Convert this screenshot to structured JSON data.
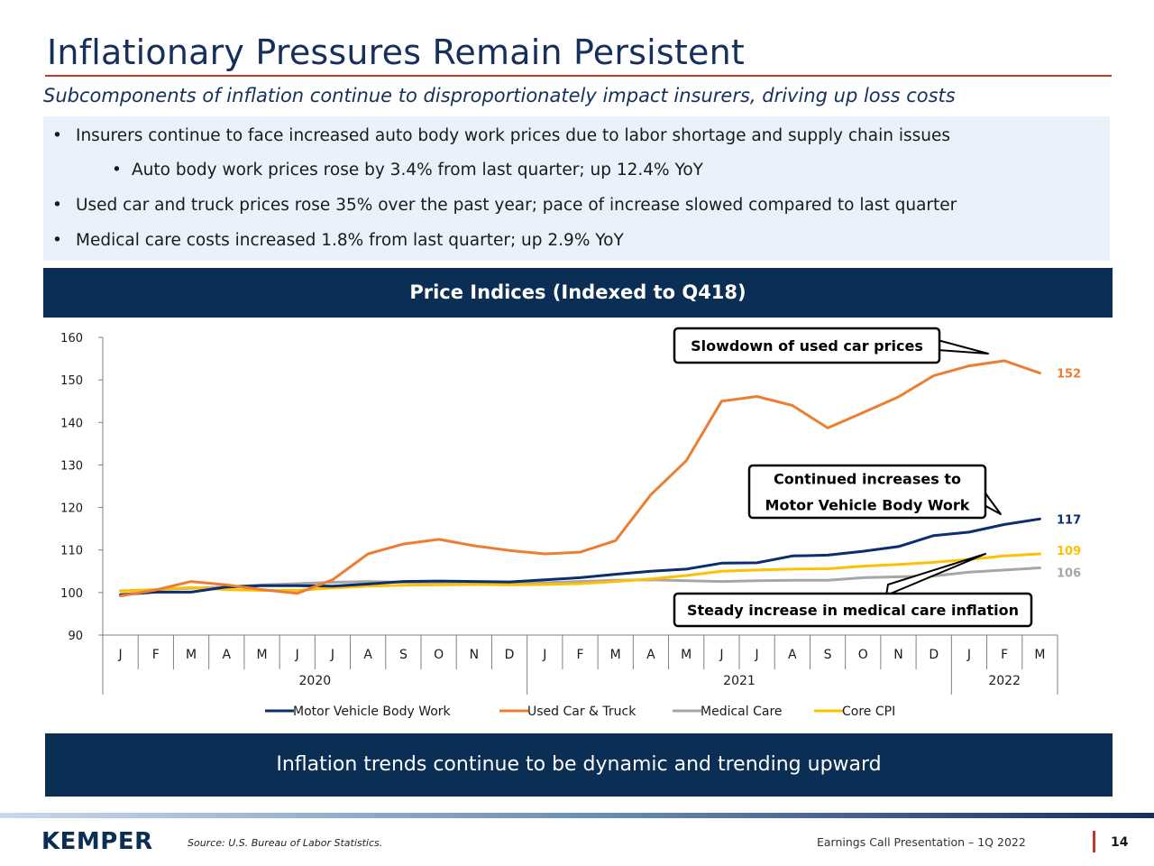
{
  "header": {
    "title": "Inflationary Pressures Remain Persistent",
    "subtitle": "Subcomponents of inflation continue to disproportionately impact insurers, driving up loss costs"
  },
  "bullets": [
    "Insurers continue to face increased auto body work prices due to labor shortage and supply chain issues",
    "Auto body work prices rose by 3.4% from last quarter; up 12.4% YoY",
    "Used car and truck prices rose 35% over the past year; pace of increase slowed compared to last quarter",
    "Medical care costs increased 1.8% from last quarter; up 2.9% YoY"
  ],
  "chart_data": {
    "type": "line",
    "title": "Price Indices (Indexed to Q418)",
    "categories": [
      "J",
      "F",
      "M",
      "A",
      "M",
      "J",
      "J",
      "A",
      "S",
      "O",
      "N",
      "D",
      "J",
      "F",
      "M",
      "A",
      "M",
      "J",
      "J",
      "A",
      "S",
      "O",
      "N",
      "D",
      "J",
      "F",
      "M"
    ],
    "year_groups": [
      {
        "label": "2020",
        "count": 12
      },
      {
        "label": "2021",
        "count": 12
      },
      {
        "label": "2022",
        "count": 3
      }
    ],
    "ylim": [
      90,
      160
    ],
    "yticks": [
      90,
      100,
      110,
      120,
      130,
      140,
      150,
      160
    ],
    "series": [
      {
        "name": "Motor Vehicle Body Work",
        "color": "#0b2e6e",
        "end_label": "117",
        "values": [
          99.5,
          100.1,
          100.1,
          101.3,
          101.6,
          101.6,
          101.5,
          102.0,
          102.6,
          102.7,
          102.6,
          102.5,
          103.0,
          103.5,
          104.3,
          105.0,
          105.5,
          106.9,
          107.0,
          108.6,
          108.8,
          109.7,
          110.8,
          113.4,
          114.2,
          116.0,
          117.3
        ]
      },
      {
        "name": "Used Car & Truck",
        "color": "#ed7d31",
        "end_label": "152",
        "values": [
          99.2,
          100.6,
          102.6,
          101.8,
          100.7,
          99.8,
          103.0,
          109.1,
          111.4,
          112.5,
          111.0,
          109.9,
          109.1,
          109.5,
          112.2,
          123.0,
          131.0,
          145.0,
          146.1,
          144.0,
          138.7,
          142.3,
          146.0,
          151.0,
          153.3,
          154.5,
          151.6
        ]
      },
      {
        "name": "Medical Care",
        "color": "#a6a6a6",
        "end_label": "106",
        "values": [
          100.4,
          100.7,
          101.0,
          101.3,
          101.8,
          102.1,
          102.4,
          102.6,
          102.4,
          102.2,
          102.1,
          102.1,
          102.3,
          102.6,
          102.9,
          103.0,
          102.8,
          102.6,
          102.8,
          102.9,
          102.9,
          103.5,
          103.7,
          103.9,
          104.8,
          105.3,
          105.8
        ]
      },
      {
        "name": "Core CPI",
        "color": "#ffc000",
        "end_label": "109",
        "values": [
          100.3,
          100.7,
          101.2,
          100.7,
          100.5,
          100.5,
          101.1,
          101.5,
          101.7,
          101.8,
          101.9,
          101.8,
          101.9,
          102.1,
          102.6,
          103.2,
          104.0,
          105.0,
          105.3,
          105.5,
          105.6,
          106.2,
          106.6,
          107.1,
          107.8,
          108.6,
          109.1
        ]
      }
    ],
    "annotations": [
      "Slowdown of used car prices",
      "Continued increases to Motor Vehicle Body Work",
      "Steady increase in medical care inflation"
    ],
    "legend_position": "bottom"
  },
  "banner": "Inflation trends continue to be dynamic and trending upward",
  "footer": {
    "logo": "KEMPER",
    "source": "Source: U.S. Bureau of Labor Statistics.",
    "presentation": "Earnings Call Presentation – 1Q 2022",
    "page": "14"
  }
}
